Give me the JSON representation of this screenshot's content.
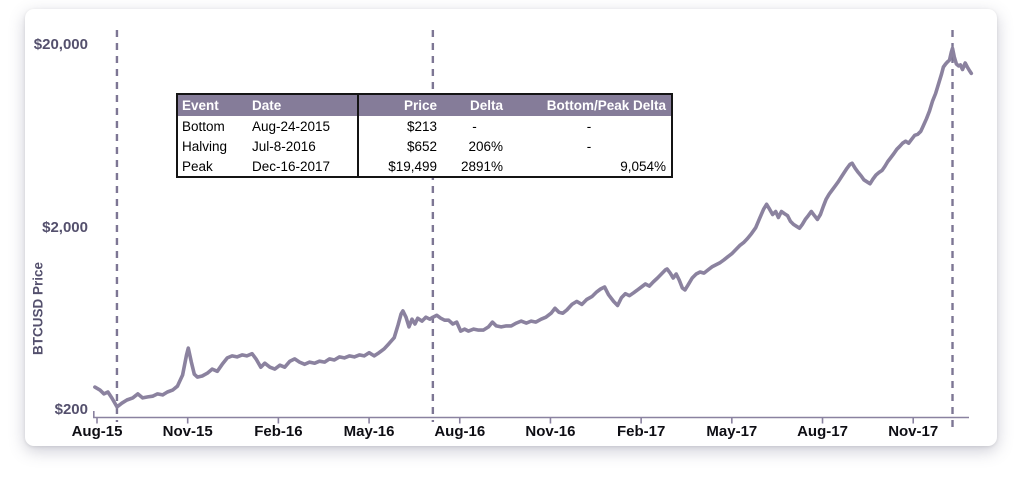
{
  "chart_data": {
    "type": "line",
    "title": "",
    "ylabel": "BTCUSD Price",
    "y_scale": "log",
    "ylim": [
      200,
      20000
    ],
    "y_ticks": [
      {
        "value": 20000,
        "label": "$20,000"
      },
      {
        "value": 2000,
        "label": "$2,000"
      },
      {
        "value": 200,
        "label": "$200"
      }
    ],
    "x_ticks": [
      "Aug-15",
      "Nov-15",
      "Feb-16",
      "May-16",
      "Aug-16",
      "Nov-16",
      "Feb-17",
      "May-17",
      "Aug-17",
      "Nov-17"
    ],
    "x_unit": "months since Aug-2015",
    "legend": "none",
    "grid": false,
    "event_lines": [
      {
        "event": "Bottom",
        "date": "Aug-24-2015",
        "month": 0.66,
        "price": 213
      },
      {
        "event": "Halving",
        "date": "Jul-8-2016",
        "month": 11.11,
        "price": 652
      },
      {
        "event": "Peak",
        "date": "Dec-16-2017",
        "month": 28.3,
        "price": 19499
      }
    ],
    "series": [
      {
        "name": "BTCUSD price (USD)",
        "points": [
          [
            -0.07,
            267
          ],
          [
            0.1,
            257
          ],
          [
            0.23,
            245
          ],
          [
            0.36,
            251
          ],
          [
            0.49,
            233
          ],
          [
            0.66,
            208
          ],
          [
            0.82,
            218
          ],
          [
            0.99,
            227
          ],
          [
            1.18,
            233
          ],
          [
            1.35,
            245
          ],
          [
            1.51,
            233
          ],
          [
            1.68,
            236
          ],
          [
            1.84,
            238
          ],
          [
            2.0,
            245
          ],
          [
            2.17,
            242
          ],
          [
            2.33,
            251
          ],
          [
            2.5,
            257
          ],
          [
            2.66,
            270
          ],
          [
            2.83,
            311
          ],
          [
            2.96,
            400
          ],
          [
            3.02,
            437
          ],
          [
            3.12,
            367
          ],
          [
            3.22,
            314
          ],
          [
            3.32,
            303
          ],
          [
            3.48,
            307
          ],
          [
            3.65,
            318
          ],
          [
            3.81,
            335
          ],
          [
            3.98,
            326
          ],
          [
            4.14,
            356
          ],
          [
            4.31,
            386
          ],
          [
            4.47,
            396
          ],
          [
            4.63,
            391
          ],
          [
            4.8,
            401
          ],
          [
            4.96,
            396
          ],
          [
            5.13,
            407
          ],
          [
            5.26,
            381
          ],
          [
            5.42,
            343
          ],
          [
            5.55,
            361
          ],
          [
            5.72,
            343
          ],
          [
            5.88,
            335
          ],
          [
            6.05,
            352
          ],
          [
            6.21,
            343
          ],
          [
            6.38,
            370
          ],
          [
            6.54,
            381
          ],
          [
            6.7,
            366
          ],
          [
            6.87,
            356
          ],
          [
            7.03,
            366
          ],
          [
            7.2,
            361
          ],
          [
            7.36,
            370
          ],
          [
            7.53,
            366
          ],
          [
            7.69,
            381
          ],
          [
            7.85,
            376
          ],
          [
            8.02,
            391
          ],
          [
            8.18,
            386
          ],
          [
            8.35,
            396
          ],
          [
            8.51,
            391
          ],
          [
            8.68,
            401
          ],
          [
            8.84,
            396
          ],
          [
            9.0,
            412
          ],
          [
            9.17,
            396
          ],
          [
            9.33,
            412
          ],
          [
            9.5,
            433
          ],
          [
            9.66,
            462
          ],
          [
            9.83,
            498
          ],
          [
            9.96,
            585
          ],
          [
            10.06,
            672
          ],
          [
            10.12,
            698
          ],
          [
            10.22,
            645
          ],
          [
            10.32,
            571
          ],
          [
            10.42,
            629
          ],
          [
            10.52,
            592
          ],
          [
            10.61,
            637
          ],
          [
            10.75,
            614
          ],
          [
            10.88,
            645
          ],
          [
            11.01,
            629
          ],
          [
            11.11,
            645
          ],
          [
            11.24,
            661
          ],
          [
            11.37,
            637
          ],
          [
            11.5,
            621
          ],
          [
            11.63,
            621
          ],
          [
            11.77,
            592
          ],
          [
            11.9,
            606
          ],
          [
            12.03,
            541
          ],
          [
            12.16,
            555
          ],
          [
            12.29,
            541
          ],
          [
            12.46,
            555
          ],
          [
            12.62,
            548
          ],
          [
            12.78,
            548
          ],
          [
            12.95,
            571
          ],
          [
            13.08,
            606
          ],
          [
            13.21,
            578
          ],
          [
            13.37,
            571
          ],
          [
            13.54,
            578
          ],
          [
            13.7,
            578
          ],
          [
            13.87,
            599
          ],
          [
            14.03,
            614
          ],
          [
            14.2,
            599
          ],
          [
            14.36,
            614
          ],
          [
            14.52,
            606
          ],
          [
            14.69,
            629
          ],
          [
            14.85,
            645
          ],
          [
            15.02,
            678
          ],
          [
            15.15,
            722
          ],
          [
            15.28,
            687
          ],
          [
            15.41,
            678
          ],
          [
            15.54,
            706
          ],
          [
            15.71,
            758
          ],
          [
            15.87,
            787
          ],
          [
            16.04,
            758
          ],
          [
            16.2,
            806
          ],
          [
            16.37,
            836
          ],
          [
            16.53,
            887
          ],
          [
            16.66,
            921
          ],
          [
            16.79,
            944
          ],
          [
            16.92,
            857
          ],
          [
            17.09,
            787
          ],
          [
            17.22,
            748
          ],
          [
            17.35,
            826
          ],
          [
            17.48,
            868
          ],
          [
            17.61,
            846
          ],
          [
            17.75,
            877
          ],
          [
            17.88,
            910
          ],
          [
            18.01,
            944
          ],
          [
            18.14,
            980
          ],
          [
            18.27,
            955
          ],
          [
            18.4,
            1005
          ],
          [
            18.54,
            1057
          ],
          [
            18.67,
            1112
          ],
          [
            18.8,
            1170
          ],
          [
            18.86,
            1185
          ],
          [
            18.96,
            1125
          ],
          [
            19.06,
            1057
          ],
          [
            19.16,
            1112
          ],
          [
            19.26,
            1031
          ],
          [
            19.36,
            933
          ],
          [
            19.45,
            910
          ],
          [
            19.55,
            967
          ],
          [
            19.69,
            1057
          ],
          [
            19.82,
            1112
          ],
          [
            19.95,
            1141
          ],
          [
            20.08,
            1125
          ],
          [
            20.21,
            1170
          ],
          [
            20.34,
            1217
          ],
          [
            20.47,
            1248
          ],
          [
            20.6,
            1280
          ],
          [
            20.74,
            1330
          ],
          [
            20.87,
            1383
          ],
          [
            21.0,
            1437
          ],
          [
            21.13,
            1513
          ],
          [
            21.26,
            1592
          ],
          [
            21.39,
            1653
          ],
          [
            21.52,
            1740
          ],
          [
            21.65,
            1852
          ],
          [
            21.79,
            1995
          ],
          [
            21.92,
            2243
          ],
          [
            22.05,
            2520
          ],
          [
            22.15,
            2680
          ],
          [
            22.25,
            2520
          ],
          [
            22.35,
            2355
          ],
          [
            22.45,
            2447
          ],
          [
            22.54,
            2270
          ],
          [
            22.64,
            2447
          ],
          [
            22.74,
            2383
          ],
          [
            22.84,
            2325
          ],
          [
            22.94,
            2160
          ],
          [
            23.04,
            2080
          ],
          [
            23.14,
            2030
          ],
          [
            23.24,
            1982
          ],
          [
            23.33,
            2080
          ],
          [
            23.43,
            2214
          ],
          [
            23.53,
            2325
          ],
          [
            23.63,
            2447
          ],
          [
            23.73,
            2325
          ],
          [
            23.83,
            2214
          ],
          [
            23.93,
            2355
          ],
          [
            24.03,
            2617
          ],
          [
            24.12,
            2855
          ],
          [
            24.22,
            3050
          ],
          [
            24.32,
            3210
          ],
          [
            24.42,
            3380
          ],
          [
            24.52,
            3560
          ],
          [
            24.62,
            3780
          ],
          [
            24.72,
            4010
          ],
          [
            24.81,
            4220
          ],
          [
            24.91,
            4440
          ],
          [
            24.98,
            4500
          ],
          [
            25.08,
            4220
          ],
          [
            25.18,
            4010
          ],
          [
            25.28,
            3830
          ],
          [
            25.37,
            3650
          ],
          [
            25.47,
            3560
          ],
          [
            25.57,
            3470
          ],
          [
            25.67,
            3690
          ],
          [
            25.77,
            3880
          ],
          [
            25.87,
            4010
          ],
          [
            25.97,
            4110
          ],
          [
            26.06,
            4320
          ],
          [
            26.16,
            4600
          ],
          [
            26.26,
            4830
          ],
          [
            26.36,
            5090
          ],
          [
            26.46,
            5370
          ],
          [
            26.56,
            5580
          ],
          [
            26.65,
            5790
          ],
          [
            26.75,
            5940
          ],
          [
            26.85,
            5790
          ],
          [
            26.95,
            6090
          ],
          [
            27.05,
            6400
          ],
          [
            27.15,
            6480
          ],
          [
            27.25,
            6730
          ],
          [
            27.34,
            7250
          ],
          [
            27.44,
            7890
          ],
          [
            27.54,
            8700
          ],
          [
            27.64,
            9880
          ],
          [
            27.74,
            10850
          ],
          [
            27.84,
            12280
          ],
          [
            27.94,
            13900
          ],
          [
            28.0,
            15150
          ],
          [
            28.07,
            15730
          ],
          [
            28.13,
            16130
          ],
          [
            28.2,
            16540
          ],
          [
            28.26,
            18240
          ],
          [
            28.3,
            19180
          ],
          [
            28.36,
            17180
          ],
          [
            28.43,
            15730
          ],
          [
            28.5,
            15370
          ],
          [
            28.56,
            15560
          ],
          [
            28.63,
            14690
          ],
          [
            28.72,
            15930
          ],
          [
            28.79,
            15150
          ],
          [
            28.86,
            14500
          ],
          [
            28.92,
            13980
          ]
        ]
      }
    ]
  },
  "table": {
    "headers": [
      "Event",
      "Date",
      "Price",
      "Delta",
      "Bottom/Peak Delta"
    ],
    "rows": [
      [
        "Bottom",
        "Aug-24-2015",
        "$213",
        "-",
        "-"
      ],
      [
        "Halving",
        "Jul-8-2016",
        "$652",
        "206%",
        "-"
      ],
      [
        "Peak",
        "Dec-16-2017",
        "$19,499",
        "2891%",
        "9,054%"
      ]
    ]
  },
  "colors": {
    "price_line": "#8b829f",
    "event_line": "#7d7694",
    "axis": "#8a82a0",
    "y_label_text": "#54506d",
    "x_label_text": "#0e0e14",
    "table_header_bg": "#857c99",
    "table_header_text": "#ffffff",
    "table_border": "#141414"
  }
}
